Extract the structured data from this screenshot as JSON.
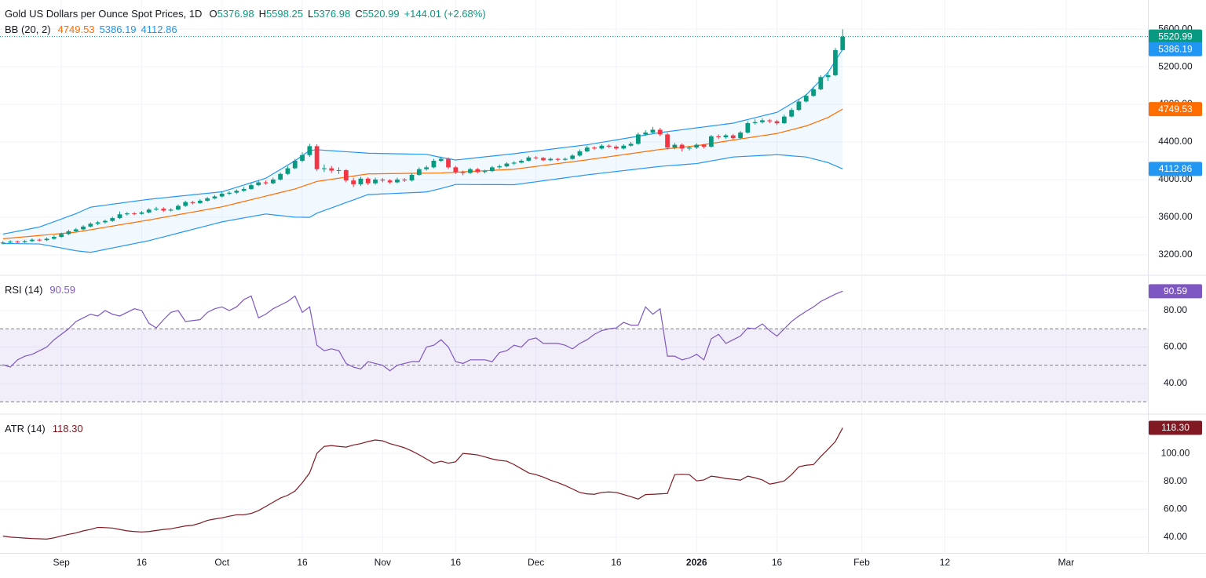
{
  "chart_data": [
    {
      "type": "candlestick",
      "title": "Gold US Dollars per Ounce Spot Prices, 1D",
      "ohlc_prefixes": [
        "O",
        "H",
        "L",
        "C"
      ],
      "change_label": "+144.01 (+2.68%)",
      "up_color": "#089981",
      "down_color": "#f23645",
      "open": [
        3320,
        3330,
        3340,
        3335,
        3345,
        3360,
        3355,
        3370,
        3390,
        3420,
        3450,
        3470,
        3500,
        3530,
        3545,
        3560,
        3590,
        3630,
        3640,
        3635,
        3650,
        3680,
        3690,
        3670,
        3680,
        3720,
        3760,
        3750,
        3775,
        3800,
        3820,
        3850,
        3860,
        3880,
        3900,
        3940,
        3970,
        3960,
        4000,
        4060,
        4120,
        4200,
        4260,
        4355,
        4110,
        4120,
        4095,
        4100,
        3990,
        3950,
        4010,
        3960,
        4000,
        3990,
        3970,
        4000,
        3990,
        4050,
        4110,
        4130,
        4200,
        4220,
        4130,
        4080,
        4070,
        4110,
        4080,
        4090,
        4130,
        4140,
        4170,
        4180,
        4200,
        4235,
        4230,
        4205,
        4220,
        4210,
        4220,
        4255,
        4300,
        4340,
        4330,
        4360,
        4350,
        4330,
        4360,
        4380,
        4480,
        4500,
        4530,
        4480,
        4340,
        4370,
        4330,
        4340,
        4370,
        4350,
        4460,
        4450,
        4470,
        4440,
        4500,
        4600,
        4610,
        4630,
        4620,
        4600,
        4670,
        4740,
        4830,
        4890,
        4960,
        5090,
        5110,
        5376.98
      ],
      "high": [
        3345,
        3355,
        3352,
        3358,
        3375,
        3372,
        3385,
        3405,
        3435,
        3465,
        3485,
        3515,
        3545,
        3560,
        3575,
        3605,
        3660,
        3655,
        3655,
        3665,
        3695,
        3710,
        3705,
        3695,
        3735,
        3775,
        3772,
        3790,
        3815,
        3835,
        3870,
        3875,
        3895,
        3920,
        3960,
        3985,
        3990,
        4020,
        4075,
        4140,
        4220,
        4290,
        4380,
        4375,
        4160,
        4145,
        4130,
        4110,
        4020,
        4030,
        4025,
        4020,
        4015,
        4005,
        4020,
        4015,
        4070,
        4130,
        4150,
        4220,
        4245,
        4235,
        4145,
        4095,
        4125,
        4125,
        4105,
        4145,
        4160,
        4185,
        4195,
        4215,
        4250,
        4250,
        4240,
        4235,
        4230,
        4235,
        4270,
        4320,
        4360,
        4355,
        4375,
        4375,
        4365,
        4375,
        4400,
        4500,
        4525,
        4560,
        4550,
        4500,
        4390,
        4385,
        4355,
        4385,
        4380,
        4475,
        4480,
        4485,
        4485,
        4515,
        4620,
        4640,
        4650,
        4645,
        4635,
        4690,
        4760,
        4850,
        4910,
        4985,
        5110,
        5140,
        5400,
        5598.25
      ],
      "low": [
        3310,
        3318,
        3325,
        3325,
        3335,
        3342,
        3345,
        3360,
        3380,
        3410,
        3440,
        3460,
        3490,
        3515,
        3530,
        3550,
        3580,
        3615,
        3620,
        3625,
        3640,
        3668,
        3655,
        3660,
        3672,
        3710,
        3735,
        3740,
        3765,
        3790,
        3810,
        3835,
        3845,
        3870,
        3890,
        3930,
        3945,
        3950,
        3990,
        4050,
        4110,
        4185,
        4240,
        4090,
        4080,
        4070,
        4060,
        3970,
        3920,
        3930,
        3940,
        3945,
        3970,
        3955,
        3960,
        3975,
        3980,
        4040,
        4095,
        4120,
        4185,
        4110,
        4060,
        4045,
        4060,
        4065,
        4065,
        4080,
        4115,
        4130,
        4155,
        4170,
        4190,
        4215,
        4195,
        4195,
        4195,
        4200,
        4210,
        4245,
        4290,
        4315,
        4320,
        4335,
        4315,
        4320,
        4350,
        4370,
        4465,
        4490,
        4460,
        4320,
        4320,
        4300,
        4310,
        4325,
        4330,
        4340,
        4430,
        4435,
        4425,
        4430,
        4490,
        4585,
        4595,
        4600,
        4580,
        4590,
        4660,
        4730,
        4820,
        4880,
        4950,
        5050,
        5100,
        5376.98
      ],
      "close": [
        3330,
        3340,
        3335,
        3345,
        3360,
        3355,
        3370,
        3390,
        3420,
        3450,
        3470,
        3500,
        3530,
        3545,
        3560,
        3590,
        3630,
        3640,
        3635,
        3650,
        3680,
        3690,
        3670,
        3680,
        3720,
        3760,
        3750,
        3775,
        3800,
        3820,
        3850,
        3860,
        3880,
        3900,
        3940,
        3970,
        3960,
        4000,
        4060,
        4120,
        4200,
        4260,
        4355,
        4110,
        4120,
        4095,
        4100,
        3990,
        3950,
        4010,
        3960,
        4000,
        3990,
        3970,
        4000,
        3990,
        4050,
        4110,
        4130,
        4200,
        4220,
        4130,
        4080,
        4070,
        4110,
        4080,
        4090,
        4130,
        4140,
        4170,
        4180,
        4200,
        4235,
        4230,
        4205,
        4220,
        4210,
        4220,
        4255,
        4300,
        4340,
        4330,
        4360,
        4350,
        4330,
        4360,
        4380,
        4480,
        4500,
        4530,
        4480,
        4340,
        4370,
        4330,
        4340,
        4370,
        4350,
        4460,
        4450,
        4470,
        4440,
        4500,
        4600,
        4610,
        4630,
        4620,
        4600,
        4670,
        4740,
        4830,
        4890,
        4960,
        5090,
        5110,
        5376.98,
        5520.99
      ],
      "ylim": [
        2990,
        5910
      ],
      "yticks": [
        {
          "value": 3200,
          "label": "3200.00"
        },
        {
          "value": 3600,
          "label": "3600.00"
        },
        {
          "value": 4000,
          "label": "4000.00"
        },
        {
          "value": 4400,
          "label": "4400.00"
        },
        {
          "value": 4800,
          "label": "4800.00"
        },
        {
          "value": 5200,
          "label": "5200.00"
        },
        {
          "value": 5600,
          "label": "5600.00"
        }
      ],
      "grid": true,
      "last_price_line": true,
      "overlay": {
        "type": "bands",
        "name": "BB (20, 2)",
        "fill": "#2196f3",
        "series": [
          {
            "color": "#ff6d00",
            "values": [
              3370,
              3377,
              3384,
              3391,
              3398,
              3405,
              3412,
              3419,
              3426,
              3433,
              3440,
              3453,
              3466,
              3479,
              3492,
              3505,
              3518,
              3531,
              3544,
              3557,
              3570,
              3584,
              3598,
              3612,
              3626,
              3640,
              3654,
              3668,
              3682,
              3696,
              3710,
              3729,
              3748,
              3767,
              3786,
              3805,
              3824,
              3843,
              3862,
              3881,
              3900,
              3927,
              3953,
              3980,
              3991,
              4003,
              4014,
              4026,
              4037,
              4049,
              4060,
              4061,
              4062,
              4063,
              4064,
              4065,
              4066,
              4067,
              4068,
              4069,
              4070,
              4074,
              4078,
              4082,
              4086,
              4090,
              4094,
              4098,
              4102,
              4106,
              4110,
              4120,
              4130,
              4140,
              4150,
              4160,
              4170,
              4180,
              4190,
              4200,
              4210,
              4221,
              4232,
              4243,
              4254,
              4265,
              4276,
              4287,
              4298,
              4309,
              4320,
              4328,
              4336,
              4344,
              4352,
              4360,
              4372,
              4384,
              4396,
              4408,
              4420,
              4432,
              4443,
              4455,
              4467,
              4478,
              4490,
              4510,
              4530,
              4550,
              4570,
              4600,
              4630,
              4660,
              4705,
              4749.53
            ]
          },
          {
            "color": "#2196f3",
            "values": [
              3420,
              3435,
              3450,
              3465,
              3480,
              3495,
              3523,
              3552,
              3580,
              3609,
              3637,
              3672,
              3706,
              3717,
              3727,
              3738,
              3748,
              3759,
              3769,
              3780,
              3790,
              3798,
              3806,
              3814,
              3822,
              3830,
              3838,
              3846,
              3854,
              3862,
              3870,
              3894,
              3918,
              3942,
              3966,
              3990,
              4014,
              4061,
              4107,
              4154,
              4200,
              4255,
              4308,
              4318,
              4312,
              4307,
              4301,
              4296,
              4291,
              4286,
              4280,
              4279,
              4277,
              4276,
              4274,
              4273,
              4271,
              4270,
              4268,
              4252,
              4235,
              4222,
              4208,
              4216,
              4225,
              4233,
              4242,
              4250,
              4258,
              4267,
              4275,
              4285,
              4294,
              4304,
              4313,
              4323,
              4332,
              4342,
              4351,
              4361,
              4370,
              4383,
              4396,
              4409,
              4422,
              4435,
              4448,
              4461,
              4474,
              4487,
              4500,
              4510,
              4520,
              4530,
              4540,
              4550,
              4560,
              4570,
              4580,
              4590,
              4600,
              4620,
              4638,
              4658,
              4677,
              4696,
              4715,
              4761,
              4808,
              4854,
              4900,
              4980,
              5060,
              5140,
              5263,
              5386.19
            ]
          },
          {
            "color": "#2196f3",
            "values": [
              3320,
              3319,
              3318,
              3317,
              3316,
              3315,
              3301,
              3286,
              3272,
              3257,
              3243,
              3234,
              3226,
              3241,
              3257,
              3272,
              3288,
              3303,
              3319,
              3334,
              3350,
              3370,
              3390,
              3410,
              3430,
              3450,
              3470,
              3490,
              3510,
              3530,
              3550,
              3564,
              3578,
              3592,
              3606,
              3620,
              3634,
              3625,
              3617,
              3608,
              3600,
              3599,
              3598,
              3642,
              3670,
              3699,
              3727,
              3756,
              3783,
              3812,
              3840,
              3843,
              3847,
              3850,
              3854,
              3857,
              3861,
              3864,
              3868,
              3886,
              3905,
              3926,
              3948,
              3948,
              3947,
              3947,
              3946,
              3946,
              3946,
              3945,
              3945,
              3955,
              3966,
              3976,
              3987,
              3997,
              4008,
              4018,
              4029,
              4039,
              4050,
              4059,
              4068,
              4077,
              4086,
              4095,
              4104,
              4113,
              4122,
              4131,
              4140,
              4146,
              4152,
              4158,
              4164,
              4170,
              4184,
              4198,
              4212,
              4226,
              4240,
              4244,
              4248,
              4252,
              4257,
              4260,
              4265,
              4259,
              4252,
              4246,
              4240,
              4220,
              4200,
              4180,
              4147,
              4112.86
            ]
          }
        ]
      }
    },
    {
      "type": "line",
      "name": "RSI (14)",
      "color": "#7e57c2",
      "values": [
        50.3,
        49,
        53,
        55,
        56,
        58,
        60,
        64,
        67,
        70,
        74,
        76,
        78,
        77,
        80,
        78,
        77,
        79,
        81,
        80,
        73,
        70.5,
        75,
        79,
        80,
        74,
        74.5,
        75,
        79,
        81,
        82,
        80,
        82,
        86,
        88,
        76,
        78,
        81,
        83,
        85,
        88,
        79,
        82,
        61,
        58,
        59,
        58,
        51,
        49,
        48,
        52,
        51,
        50,
        47,
        50,
        51,
        52,
        52,
        60,
        61,
        64,
        60,
        52,
        51,
        53,
        53,
        53,
        52,
        57,
        58,
        61,
        60,
        64,
        65,
        62,
        62,
        62,
        61,
        59,
        62,
        64,
        67,
        69,
        70,
        70.5,
        73.5,
        72,
        72,
        82,
        78,
        81,
        55,
        55,
        53,
        54,
        56,
        53,
        64.5,
        67,
        62,
        64,
        66,
        70.5,
        70,
        72.7,
        69,
        66,
        70,
        74,
        77,
        79.6,
        82,
        85,
        87,
        89,
        90.59
      ],
      "band": [
        30,
        70
      ],
      "levels": [
        70,
        50,
        30
      ],
      "band_color": "#7e57c2",
      "ylim": [
        23.7,
        98.9
      ],
      "yticks": [
        {
          "value": 40,
          "label": "40.00"
        },
        {
          "value": 60,
          "label": "60.00"
        },
        {
          "value": 80,
          "label": "80.00"
        }
      ],
      "grid": true
    },
    {
      "type": "line",
      "name": "ATR (14)",
      "color": "#801922",
      "values": [
        40.8,
        40,
        39.7,
        39.3,
        39,
        38.8,
        38.6,
        39.5,
        40.8,
        42,
        43,
        44.5,
        45.5,
        47,
        46.8,
        46.5,
        45.5,
        44.5,
        44,
        43.7,
        44,
        44.8,
        45.5,
        46,
        47,
        48,
        48.5,
        50,
        52,
        53,
        53.8,
        55,
        56,
        56,
        57,
        59,
        62,
        65,
        68,
        70,
        73,
        79,
        86,
        100,
        105,
        105.6,
        105,
        104.5,
        106,
        107,
        108.5,
        109.6,
        109,
        107,
        105.6,
        104,
        101.7,
        99,
        96,
        93,
        94.4,
        93,
        94,
        100,
        99.5,
        98.9,
        97.5,
        96,
        95,
        94.4,
        92,
        89,
        86,
        84.8,
        83,
        80.8,
        79,
        77,
        74.5,
        72,
        71,
        70.7,
        72,
        72.4,
        72,
        70.5,
        69,
        67.3,
        70.5,
        70.7,
        71,
        71.3,
        84.8,
        85,
        84.8,
        80.3,
        81,
        83.7,
        83,
        82,
        81.5,
        80.8,
        83.7,
        82.5,
        81,
        78,
        79,
        80.3,
        84.8,
        90.4,
        91.5,
        92,
        97.7,
        103,
        108.5,
        118.3
      ],
      "last_value_label": "118.30",
      "ylim": [
        28.7,
        127.6
      ],
      "yticks": [
        {
          "value": 40,
          "label": "40.00"
        },
        {
          "value": 60,
          "label": "60.00"
        },
        {
          "value": 80,
          "label": "80.00"
        },
        {
          "value": 100,
          "label": "100.00"
        }
      ],
      "grid": true,
      "xlim": [
        -0.4,
        156.8
      ],
      "xticks": [
        {
          "value": 8,
          "label": "Sep"
        },
        {
          "value": 19,
          "label": "16"
        },
        {
          "value": 30,
          "label": "Oct"
        },
        {
          "value": 41,
          "label": "16"
        },
        {
          "value": 52,
          "label": "Nov"
        },
        {
          "value": 62,
          "label": "16"
        },
        {
          "value": 73,
          "label": "Dec"
        },
        {
          "value": 84,
          "label": "16"
        },
        {
          "value": 95,
          "label": "2026",
          "bold": true
        },
        {
          "value": 106,
          "label": "16"
        },
        {
          "value": 117.6,
          "label": "Feb"
        },
        {
          "value": 129,
          "label": "12"
        },
        {
          "value": 145.6,
          "label": "Mar"
        }
      ]
    }
  ]
}
